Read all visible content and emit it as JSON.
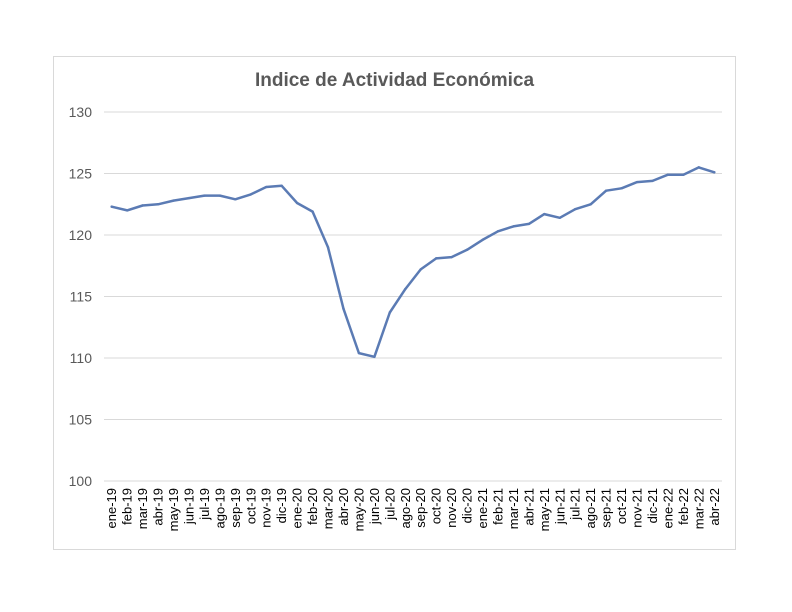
{
  "chart_data": {
    "type": "line",
    "title": "Indice de Actividad Económica",
    "xlabel": "",
    "ylabel": "",
    "ylim": [
      100,
      130
    ],
    "yticks": [
      100,
      105,
      110,
      115,
      120,
      125,
      130
    ],
    "grid": true,
    "line_color": "#5b7bb4",
    "categories": [
      "ene-19",
      "feb-19",
      "mar-19",
      "abr-19",
      "may-19",
      "jun-19",
      "jul-19",
      "ago-19",
      "sep-19",
      "oct-19",
      "nov-19",
      "dic-19",
      "ene-20",
      "feb-20",
      "mar-20",
      "abr-20",
      "may-20",
      "jun-20",
      "jul-20",
      "ago-20",
      "sep-20",
      "oct-20",
      "nov-20",
      "dic-20",
      "ene-21",
      "feb-21",
      "mar-21",
      "abr-21",
      "may-21",
      "jun-21",
      "jul-21",
      "ago-21",
      "sep-21",
      "oct-21",
      "nov-21",
      "dic-21",
      "ene-22",
      "feb-22",
      "mar-22",
      "abr-22"
    ],
    "values": [
      122.3,
      122.0,
      122.4,
      122.5,
      122.8,
      123.0,
      123.2,
      123.2,
      122.9,
      123.3,
      123.9,
      124.0,
      122.6,
      121.9,
      119.0,
      114.0,
      110.4,
      110.1,
      113.7,
      115.6,
      117.2,
      118.1,
      118.2,
      118.8,
      119.6,
      120.3,
      120.7,
      120.9,
      121.7,
      121.4,
      122.1,
      122.5,
      123.6,
      123.8,
      124.3,
      124.4,
      124.9,
      124.9,
      125.5,
      125.1
    ]
  }
}
